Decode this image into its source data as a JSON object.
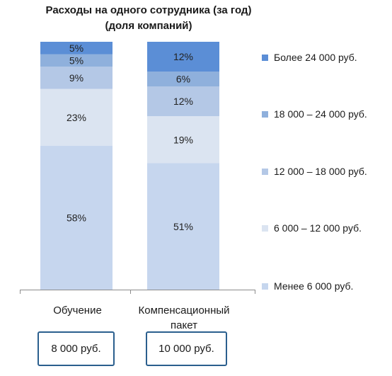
{
  "title_line1": "Расходы на одного сотрудника (за год)",
  "title_line2": "(доля компаний)",
  "colors": {
    "over_24000": "#5b8ed6",
    "18000_24000": "#8fb0dc",
    "12000_18000": "#b4c8e6",
    "6000_12000": "#dbe4f1",
    "under_6000": "#c6d6ee"
  },
  "chart_data": {
    "type": "bar",
    "stacked": true,
    "percent_stacked": true,
    "categories": [
      "Обучение",
      "Компенсационный пакет"
    ],
    "series": [
      {
        "name": "Менее 6 000 руб.",
        "values": [
          58,
          51
        ],
        "color": "#c6d6ee"
      },
      {
        "name": "6 000 – 12 000 руб.",
        "values": [
          23,
          19
        ],
        "color": "#dbe4f1"
      },
      {
        "name": "12 000 – 18 000 руб.",
        "values": [
          9,
          12
        ],
        "color": "#b4c8e6"
      },
      {
        "name": "18 000 – 24 000 руб.",
        "values": [
          5,
          6
        ],
        "color": "#8fb0dc"
      },
      {
        "name": "Более 24 000 руб.",
        "values": [
          5,
          12
        ],
        "color": "#5b8ed6"
      }
    ],
    "data_labels": [
      [
        "58%",
        "23%",
        "9%",
        "5%",
        "5%"
      ],
      [
        "51%",
        "19%",
        "12%",
        "6%",
        "12%"
      ]
    ],
    "legend_position": "right",
    "legend_order": [
      "Более 24 000 руб.",
      "18 000 – 24 000 руб.",
      "12 000 – 18 000 руб.",
      "6 000 – 12 000 руб.",
      "Менее 6 000 руб."
    ]
  },
  "category_labels": {
    "training": "Обучение",
    "compensation_line1": "Компенсационный",
    "compensation_line2": "пакет"
  },
  "averages": {
    "training": "8 000 руб.",
    "compensation": "10 000 руб."
  }
}
